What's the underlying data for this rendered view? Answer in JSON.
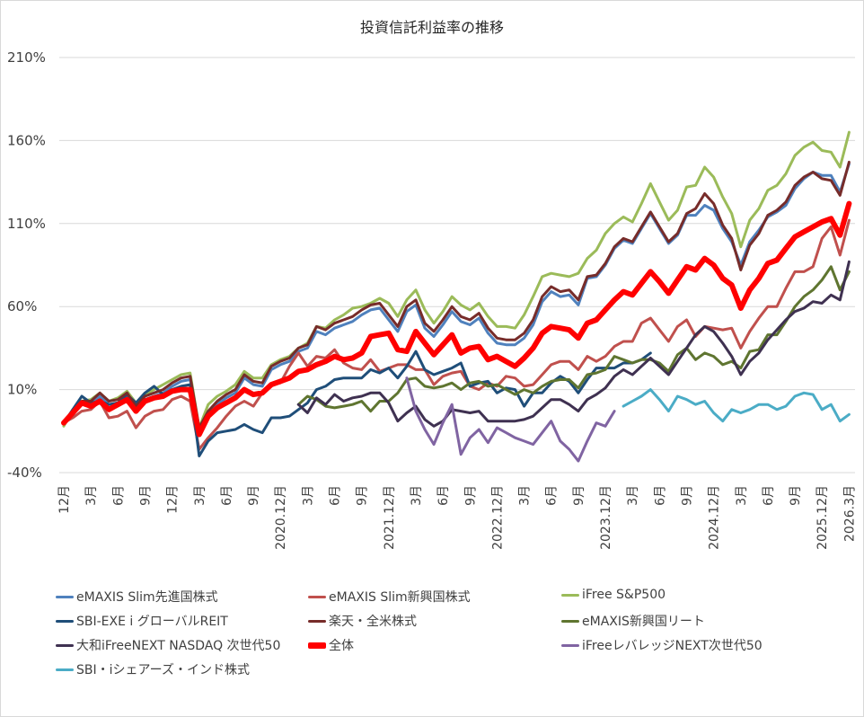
{
  "chart_data": {
    "type": "line",
    "title": "投資信託利益率の推移",
    "xlabel": "",
    "ylabel": "",
    "ylim": [
      -40,
      210
    ],
    "y_ticks": [
      "210%",
      "160%",
      "110%",
      "60%",
      "10%",
      "-40%"
    ],
    "y_tick_values": [
      210,
      160,
      110,
      60,
      10,
      -40
    ],
    "x_start": "2018.12",
    "x_end": "2026.3",
    "x_step": "monthly",
    "x_ticks": [
      "12月",
      "3月",
      "6月",
      "9月",
      "12月",
      "3月",
      "6月",
      "9月",
      "2020.12月",
      "3月",
      "6月",
      "9月",
      "2021.12月",
      "3月",
      "6月",
      "9月",
      "2022.12月",
      "3月",
      "6月",
      "9月",
      "2023.12月",
      "3月",
      "6月",
      "9月",
      "2024.12月",
      "3月",
      "6月",
      "9月",
      "2025.12月",
      "2026.3月"
    ],
    "grid": true,
    "legend_position": "bottom",
    "series": [
      {
        "name": "eMAXIS Slim先進国株式",
        "color": "#4F81BD",
        "start_month_index": 0,
        "values": [
          -11,
          -5,
          1,
          1,
          6,
          1,
          2,
          6,
          -2,
          4,
          6,
          8,
          12,
          15,
          16,
          -14,
          -5,
          1,
          5,
          8,
          17,
          13,
          12,
          22,
          25,
          27,
          33,
          35,
          45,
          43,
          47,
          49,
          51,
          55,
          58,
          59,
          52,
          45,
          57,
          61,
          47,
          42,
          49,
          57,
          51,
          49,
          53,
          44,
          38,
          37,
          37,
          41,
          49,
          63,
          69,
          66,
          67,
          61,
          77,
          78,
          85,
          95,
          100,
          98,
          107,
          116,
          107,
          98,
          103,
          115,
          115,
          121,
          118,
          107,
          99,
          85,
          99,
          106,
          114,
          117,
          121,
          131,
          137,
          141,
          139,
          139,
          129,
          146
        ]
      },
      {
        "name": "eMAXIS Slim新興国株式",
        "color": "#C0504D",
        "start_month_index": 0,
        "values": [
          -10,
          -7,
          -3,
          -2,
          3,
          -7,
          -6,
          -3,
          -13,
          -6,
          -3,
          -2,
          4,
          6,
          3,
          -26,
          -19,
          -13,
          -6,
          0,
          3,
          0,
          8,
          13,
          14,
          24,
          32,
          24,
          30,
          29,
          34,
          26,
          23,
          22,
          28,
          21,
          23,
          25,
          25,
          22,
          22,
          13,
          18,
          20,
          21,
          12,
          10,
          14,
          12,
          18,
          17,
          12,
          13,
          19,
          25,
          27,
          27,
          22,
          30,
          27,
          30,
          36,
          39,
          39,
          50,
          53,
          46,
          39,
          48,
          52,
          42,
          48,
          47,
          46,
          47,
          35,
          45,
          53,
          60,
          60,
          71,
          81,
          81,
          84,
          101,
          108,
          91,
          112
        ]
      },
      {
        "name": "iFree S&P500",
        "color": "#9BBB59",
        "start_month_index": 0,
        "values": [
          -12,
          -2,
          3,
          4,
          8,
          3,
          5,
          9,
          2,
          7,
          10,
          13,
          16,
          19,
          20,
          -13,
          1,
          6,
          9,
          13,
          21,
          17,
          17,
          25,
          28,
          30,
          35,
          38,
          48,
          47,
          52,
          55,
          59,
          60,
          62,
          65,
          62,
          54,
          64,
          70,
          58,
          50,
          57,
          66,
          61,
          58,
          62,
          54,
          48,
          48,
          47,
          55,
          66,
          78,
          80,
          79,
          78,
          80,
          89,
          94,
          104,
          110,
          114,
          111,
          122,
          134,
          123,
          112,
          118,
          132,
          133,
          144,
          138,
          126,
          116,
          96,
          112,
          119,
          130,
          133,
          140,
          151,
          156,
          159,
          154,
          153,
          144,
          165
        ]
      },
      {
        "name": "SBI-EXE i グローバルREIT",
        "color": "#1F4E79",
        "start_month_index": 0,
        "values": [
          -10,
          -2,
          6,
          2,
          3,
          1,
          2,
          7,
          2,
          8,
          12,
          7,
          10,
          12,
          13,
          -30,
          -21,
          -16,
          -15,
          -14,
          -11,
          -14,
          -16,
          -7,
          -7,
          -6,
          -2,
          2,
          10,
          12,
          16,
          17,
          17,
          17,
          22,
          20,
          23,
          17,
          24,
          33,
          22,
          19,
          21,
          23,
          26,
          12,
          14,
          15,
          8,
          11,
          10,
          0,
          8,
          8,
          14,
          18,
          15,
          8,
          16,
          23,
          23,
          23,
          26,
          26,
          28,
          32
        ]
      },
      {
        "name": "楽天・全米株式",
        "color": "#772C2A",
        "start_month_index": 0,
        "values": [
          -10,
          -3,
          3,
          3,
          8,
          3,
          4,
          8,
          0,
          6,
          8,
          10,
          14,
          17,
          18,
          -13,
          -3,
          3,
          7,
          10,
          19,
          15,
          14,
          24,
          27,
          29,
          35,
          37,
          48,
          46,
          50,
          52,
          54,
          58,
          61,
          62,
          55,
          48,
          60,
          64,
          50,
          45,
          52,
          60,
          54,
          52,
          56,
          47,
          41,
          40,
          40,
          44,
          52,
          66,
          72,
          69,
          70,
          64,
          78,
          79,
          86,
          96,
          101,
          99,
          108,
          117,
          108,
          99,
          104,
          116,
          119,
          128,
          122,
          109,
          101,
          82,
          97,
          104,
          115,
          118,
          123,
          133,
          138,
          141,
          137,
          136,
          127,
          147
        ]
      },
      {
        "name": "eMAXIS新興国リート",
        "color": "#5F7530",
        "start_month_index": 26,
        "values": [
          1,
          6,
          4,
          0,
          -1,
          0,
          1,
          3,
          -3,
          3,
          3,
          8,
          16,
          17,
          12,
          11,
          12,
          14,
          10,
          14,
          15,
          12,
          13,
          10,
          7,
          10,
          8,
          12,
          15,
          16,
          16,
          11,
          19,
          20,
          22,
          30,
          28,
          26,
          28,
          28,
          26,
          21,
          31,
          35,
          28,
          32,
          30,
          25,
          27,
          23,
          33,
          34,
          43,
          43,
          51,
          60,
          66,
          70,
          76,
          84,
          70,
          81
        ]
      },
      {
        "name": "大和iFreeNEXT NASDAQ 次世代50",
        "color": "#3F3151",
        "start_month_index": 26,
        "values": [
          1,
          -4,
          5,
          1,
          7,
          3,
          5,
          6,
          8,
          8,
          2,
          -9,
          -4,
          0,
          -8,
          -12,
          -9,
          -2,
          -3,
          -4,
          -3,
          -9,
          -9,
          -9,
          -9,
          -8,
          -6,
          -1,
          4,
          4,
          1,
          -3,
          4,
          7,
          11,
          18,
          22,
          19,
          24,
          29,
          24,
          19,
          27,
          35,
          43,
          48,
          45,
          38,
          30,
          19,
          27,
          32,
          40,
          46,
          52,
          57,
          59,
          63,
          62,
          67,
          64,
          87
        ]
      },
      {
        "name": "全体",
        "color": "#FF0000",
        "start_month_index": 0,
        "bold": true,
        "values": [
          -10,
          -4,
          2,
          0,
          3,
          -2,
          1,
          4,
          -3,
          3,
          5,
          6,
          9,
          10,
          10,
          -17,
          -6,
          -1,
          2,
          5,
          10,
          7,
          8,
          13,
          15,
          17,
          21,
          22,
          25,
          27,
          30,
          28,
          29,
          32,
          42,
          43,
          44,
          34,
          33,
          45,
          38,
          31,
          37,
          43,
          32,
          35,
          36,
          28,
          30,
          27,
          24,
          29,
          35,
          44,
          48,
          47,
          46,
          41,
          50,
          52,
          58,
          64,
          69,
          67,
          74,
          81,
          75,
          68,
          76,
          84,
          82,
          89,
          85,
          77,
          73,
          59,
          70,
          77,
          86,
          88,
          95,
          102,
          105,
          108,
          111,
          113,
          103,
          122
        ]
      },
      {
        "name": "iFreeレバレッジNEXT次世代50",
        "color": "#8064A2",
        "start_month_index": 38,
        "values": [
          17,
          -3,
          -14,
          -23,
          -10,
          1,
          -29,
          -19,
          -14,
          -22,
          -13,
          -16,
          -19,
          -21,
          -23,
          -16,
          -9,
          -21,
          -26,
          -33,
          -21,
          -10,
          -12,
          -3
        ]
      },
      {
        "name": "SBI・iシェアーズ・インド株式",
        "color": "#4BACC6",
        "start_month_index": 62,
        "values": [
          0,
          3,
          6,
          10,
          4,
          -3,
          6,
          4,
          1,
          3,
          -4,
          -9,
          -2,
          -4,
          -2,
          1,
          1,
          -2,
          0,
          6,
          8,
          7,
          -2,
          1,
          -9,
          -5
        ]
      }
    ]
  }
}
